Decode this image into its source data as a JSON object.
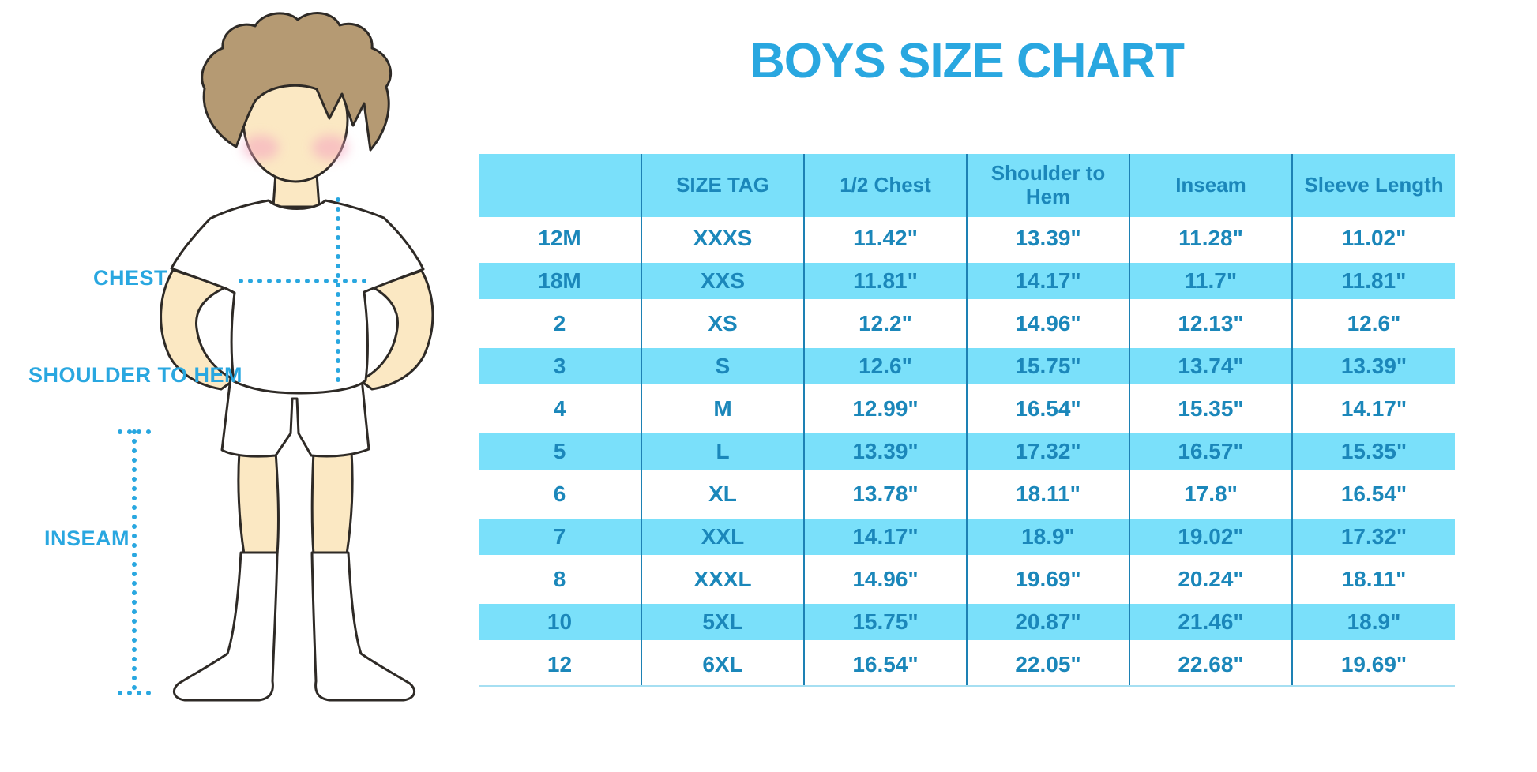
{
  "title": "BOYS SIZE CHART",
  "colors": {
    "accent": "#29A7E0",
    "stripe": "#7AE0FA",
    "table_text": "#1B87BA",
    "divider": "#1D81B4",
    "skin": "#FBE8C3",
    "hair": "#B59A73",
    "blush": "#F5A9C0",
    "outline": "#2E2A26"
  },
  "figure_labels": {
    "chest": "CHEST",
    "shoulder_to_hem": "SHOULDER TO HEM",
    "inseam": "INSEAM"
  },
  "chart_data": {
    "type": "table",
    "title": "BOYS SIZE CHART",
    "columns": [
      "",
      "SIZE TAG",
      "1/2 Chest",
      "Shoulder to Hem",
      "Inseam",
      "Sleeve Length"
    ],
    "rows": [
      [
        "12M",
        "XXXS",
        "11.42\"",
        "13.39\"",
        "11.28\"",
        "11.02\""
      ],
      [
        "18M",
        "XXS",
        "11.81\"",
        "14.17\"",
        "11.7\"",
        "11.81\""
      ],
      [
        "2",
        "XS",
        "12.2\"",
        "14.96\"",
        "12.13\"",
        "12.6\""
      ],
      [
        "3",
        "S",
        "12.6\"",
        "15.75\"",
        "13.74\"",
        "13.39\""
      ],
      [
        "4",
        "M",
        "12.99\"",
        "16.54\"",
        "15.35\"",
        "14.17\""
      ],
      [
        "5",
        "L",
        "13.39\"",
        "17.32\"",
        "16.57\"",
        "15.35\""
      ],
      [
        "6",
        "XL",
        "13.78\"",
        "18.11\"",
        "17.8\"",
        "16.54\""
      ],
      [
        "7",
        "XXL",
        "14.17\"",
        "18.9\"",
        "19.02\"",
        "17.32\""
      ],
      [
        "8",
        "XXXL",
        "14.96\"",
        "19.69\"",
        "20.24\"",
        "18.11\""
      ],
      [
        "10",
        "5XL",
        "15.75\"",
        "20.87\"",
        "21.46\"",
        "18.9\""
      ],
      [
        "12",
        "6XL",
        "16.54\"",
        "22.05\"",
        "22.68\"",
        "19.69\""
      ]
    ],
    "layout": {
      "stripe_pattern": "alternating rows, light cyan bands starting with header",
      "grid": "internal vertical dividers only"
    }
  }
}
